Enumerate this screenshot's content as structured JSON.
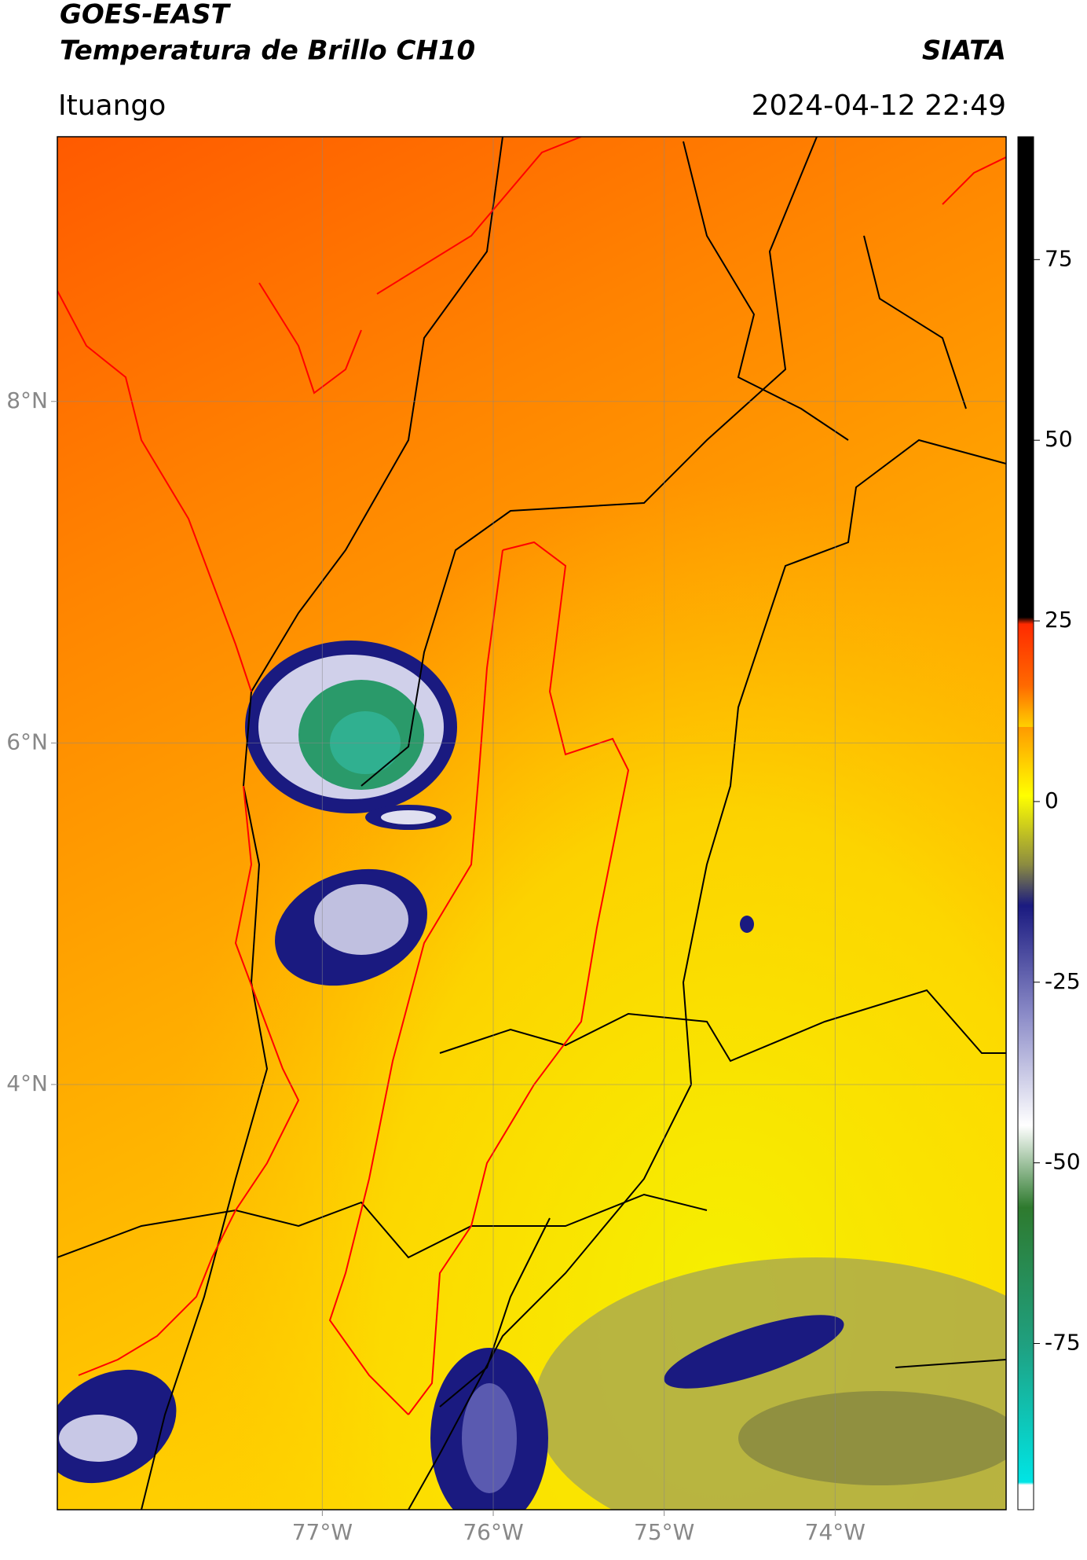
{
  "header": {
    "title": "GOES-EAST",
    "subtitle": "Temperatura de Brillo CH10",
    "source": "SIATA",
    "location": "Ituango",
    "datetime": "2024-04-12 22:49"
  },
  "map": {
    "lonlim": [
      -78.55,
      -73.0
    ],
    "latlim": [
      1.51,
      9.55
    ],
    "lonticks": [
      {
        "value": -77,
        "label": "77°W"
      },
      {
        "value": -76,
        "label": "76°W"
      },
      {
        "value": -75,
        "label": "75°W"
      },
      {
        "value": -74,
        "label": "74°W"
      }
    ],
    "latticks": [
      {
        "value": 8,
        "label": "8°N"
      },
      {
        "value": 6,
        "label": "6°N"
      },
      {
        "value": 4,
        "label": "4°N"
      }
    ],
    "grid": true
  },
  "colorbar": {
    "lim": [
      -98,
      92
    ],
    "ticks": [
      75,
      50,
      25,
      0,
      -25,
      -50,
      -75
    ]
  }
}
